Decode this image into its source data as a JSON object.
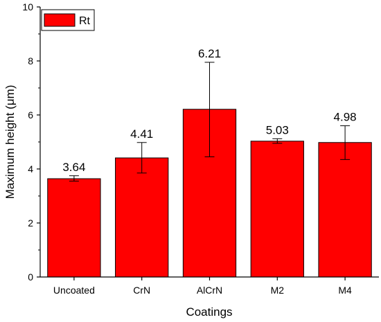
{
  "chart_data": {
    "type": "bar",
    "categories": [
      "Uncoated",
      "CrN",
      "AlCrN",
      "M2",
      "M4"
    ],
    "series": [
      {
        "name": "Rt",
        "values": [
          3.64,
          4.41,
          6.21,
          5.03,
          4.98
        ],
        "error_low": [
          3.55,
          3.85,
          4.45,
          4.95,
          4.35
        ],
        "error_high": [
          3.75,
          4.98,
          7.95,
          5.12,
          5.6
        ],
        "color": "#ff0000"
      }
    ],
    "data_labels": [
      "3.64",
      "4.41",
      "6.21",
      "5.03",
      "4.98"
    ],
    "xlabel": "Coatings",
    "ylabel": "Maximum height (μm)",
    "ylim": [
      0,
      10
    ],
    "yticks": [
      "0",
      "2",
      "4",
      "6",
      "8",
      "10"
    ],
    "legend_position": "top-left",
    "grid": false
  }
}
